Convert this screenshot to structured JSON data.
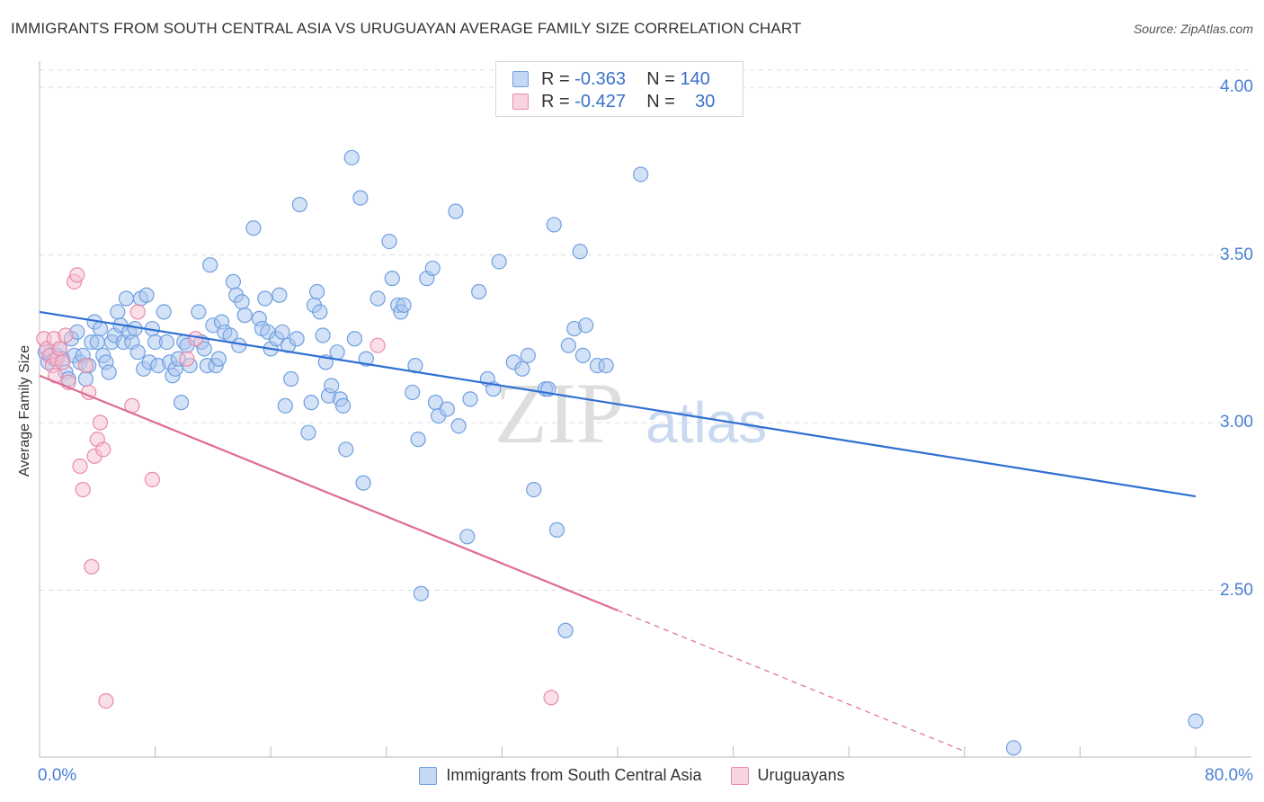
{
  "header": {
    "title": "IMMIGRANTS FROM SOUTH CENTRAL ASIA VS URUGUAYAN AVERAGE FAMILY SIZE CORRELATION CHART",
    "source": "Source: ZipAtlas.com"
  },
  "watermark": {
    "zip": "ZIP",
    "atlas": "atlas"
  },
  "legend": {
    "rows": [
      {
        "r_label": "R =",
        "r_value": "-0.363",
        "n_label": "N =",
        "n_value": "140",
        "color": "#6f9fe0"
      },
      {
        "r_label": "R =",
        "r_value": "-0.427",
        "n_label": "N =",
        "n_value": "30",
        "color": "#e98aaa"
      }
    ]
  },
  "chart_data": {
    "type": "scatter",
    "title": "IMMIGRANTS FROM SOUTH CENTRAL ASIA VS URUGUAYAN AVERAGE FAMILY SIZE CORRELATION CHART",
    "xlabel": "",
    "ylabel": "Average Family Size",
    "xlim": [
      0,
      80
    ],
    "ylim": [
      2.0,
      4.1
    ],
    "x_tick_labels": [
      "0.0%",
      "80.0%"
    ],
    "y_ticks": [
      2.5,
      3.0,
      3.5,
      4.0
    ],
    "y_tick_labels": [
      "2.50",
      "3.00",
      "3.50",
      "4.00"
    ],
    "grid": "horizontal dashed",
    "legend_position": "top-center",
    "series": [
      {
        "name": "Immigrants from South Central Asia",
        "color": "#6f9fe0",
        "fill": "#a9c6ef",
        "trend": {
          "x": [
            0,
            80
          ],
          "y": [
            3.33,
            2.78
          ]
        },
        "points": [
          [
            0.4,
            3.21
          ],
          [
            0.6,
            3.18
          ],
          [
            0.8,
            3.2
          ],
          [
            1.0,
            3.19
          ],
          [
            1.2,
            3.2
          ],
          [
            1.4,
            3.22
          ],
          [
            1.6,
            3.19
          ],
          [
            1.8,
            3.15
          ],
          [
            2.0,
            3.13
          ],
          [
            2.2,
            3.25
          ],
          [
            2.4,
            3.2
          ],
          [
            2.6,
            3.27
          ],
          [
            2.8,
            3.18
          ],
          [
            3.0,
            3.2
          ],
          [
            3.2,
            3.13
          ],
          [
            3.4,
            3.17
          ],
          [
            3.6,
            3.24
          ],
          [
            3.8,
            3.3
          ],
          [
            4.0,
            3.24
          ],
          [
            4.2,
            3.28
          ],
          [
            4.4,
            3.2
          ],
          [
            4.6,
            3.18
          ],
          [
            4.8,
            3.15
          ],
          [
            5.0,
            3.24
          ],
          [
            5.2,
            3.26
          ],
          [
            5.4,
            3.33
          ],
          [
            5.6,
            3.29
          ],
          [
            5.8,
            3.24
          ],
          [
            6.0,
            3.37
          ],
          [
            6.2,
            3.27
          ],
          [
            6.4,
            3.24
          ],
          [
            6.6,
            3.28
          ],
          [
            6.8,
            3.21
          ],
          [
            7.0,
            3.37
          ],
          [
            7.2,
            3.16
          ],
          [
            7.4,
            3.38
          ],
          [
            7.6,
            3.18
          ],
          [
            7.8,
            3.28
          ],
          [
            8.0,
            3.24
          ],
          [
            8.2,
            3.17
          ],
          [
            8.6,
            3.33
          ],
          [
            8.8,
            3.24
          ],
          [
            9.0,
            3.18
          ],
          [
            9.2,
            3.14
          ],
          [
            9.4,
            3.16
          ],
          [
            9.6,
            3.19
          ],
          [
            9.8,
            3.06
          ],
          [
            10.0,
            3.24
          ],
          [
            10.2,
            3.23
          ],
          [
            10.4,
            3.17
          ],
          [
            11.0,
            3.33
          ],
          [
            11.2,
            3.24
          ],
          [
            11.4,
            3.22
          ],
          [
            11.6,
            3.17
          ],
          [
            11.8,
            3.47
          ],
          [
            12.0,
            3.29
          ],
          [
            12.2,
            3.17
          ],
          [
            12.4,
            3.19
          ],
          [
            12.6,
            3.3
          ],
          [
            12.8,
            3.27
          ],
          [
            13.2,
            3.26
          ],
          [
            13.4,
            3.42
          ],
          [
            13.6,
            3.38
          ],
          [
            13.8,
            3.23
          ],
          [
            14.0,
            3.36
          ],
          [
            14.2,
            3.32
          ],
          [
            14.8,
            3.58
          ],
          [
            15.2,
            3.31
          ],
          [
            15.4,
            3.28
          ],
          [
            15.6,
            3.37
          ],
          [
            15.8,
            3.27
          ],
          [
            16.0,
            3.22
          ],
          [
            16.4,
            3.25
          ],
          [
            16.6,
            3.38
          ],
          [
            16.8,
            3.27
          ],
          [
            17.0,
            3.05
          ],
          [
            17.2,
            3.23
          ],
          [
            17.4,
            3.13
          ],
          [
            17.8,
            3.25
          ],
          [
            18.0,
            3.65
          ],
          [
            18.6,
            2.97
          ],
          [
            18.8,
            3.06
          ],
          [
            19.0,
            3.35
          ],
          [
            19.2,
            3.39
          ],
          [
            19.4,
            3.33
          ],
          [
            19.6,
            3.26
          ],
          [
            19.8,
            3.18
          ],
          [
            20.0,
            3.08
          ],
          [
            20.2,
            3.11
          ],
          [
            20.6,
            3.21
          ],
          [
            20.8,
            3.07
          ],
          [
            21.0,
            3.05
          ],
          [
            21.2,
            2.92
          ],
          [
            21.6,
            3.79
          ],
          [
            21.8,
            3.25
          ],
          [
            22.2,
            3.67
          ],
          [
            22.4,
            2.82
          ],
          [
            22.6,
            3.19
          ],
          [
            23.4,
            3.37
          ],
          [
            24.2,
            3.54
          ],
          [
            24.4,
            3.43
          ],
          [
            24.8,
            3.35
          ],
          [
            25.0,
            3.33
          ],
          [
            25.2,
            3.35
          ],
          [
            25.8,
            3.09
          ],
          [
            26.0,
            3.17
          ],
          [
            26.2,
            2.95
          ],
          [
            26.4,
            2.49
          ],
          [
            26.8,
            3.43
          ],
          [
            27.2,
            3.46
          ],
          [
            27.4,
            3.06
          ],
          [
            27.6,
            3.02
          ],
          [
            28.8,
            3.63
          ],
          [
            28.2,
            3.04
          ],
          [
            29.0,
            2.99
          ],
          [
            29.6,
            2.66
          ],
          [
            29.8,
            3.07
          ],
          [
            30.4,
            3.39
          ],
          [
            31.0,
            3.13
          ],
          [
            31.8,
            3.48
          ],
          [
            31.4,
            3.1
          ],
          [
            32.8,
            3.18
          ],
          [
            33.4,
            3.16
          ],
          [
            33.8,
            3.2
          ],
          [
            34.2,
            2.8
          ],
          [
            35.0,
            3.1
          ],
          [
            35.2,
            3.1
          ],
          [
            35.8,
            2.68
          ],
          [
            35.6,
            3.59
          ],
          [
            36.4,
            2.38
          ],
          [
            36.6,
            3.23
          ],
          [
            37.0,
            3.28
          ],
          [
            37.4,
            3.51
          ],
          [
            37.6,
            3.2
          ],
          [
            37.8,
            3.29
          ],
          [
            38.6,
            3.17
          ],
          [
            39.2,
            3.17
          ],
          [
            41.6,
            3.74
          ],
          [
            67.4,
            2.03
          ],
          [
            80.0,
            2.11
          ]
        ]
      },
      {
        "name": "Uruguayans",
        "color": "#e98aaa",
        "fill": "#f5bfd1",
        "trend": {
          "x": [
            0,
            40
          ],
          "y": [
            3.14,
            2.44
          ]
        },
        "trend_dashed": {
          "x": [
            40,
            64
          ],
          "y": [
            2.44,
            2.02
          ]
        },
        "points": [
          [
            0.3,
            3.25
          ],
          [
            0.5,
            3.22
          ],
          [
            0.7,
            3.2
          ],
          [
            0.9,
            3.17
          ],
          [
            1.0,
            3.25
          ],
          [
            1.1,
            3.14
          ],
          [
            1.2,
            3.19
          ],
          [
            1.4,
            3.22
          ],
          [
            1.6,
            3.18
          ],
          [
            1.8,
            3.26
          ],
          [
            2.0,
            3.12
          ],
          [
            2.4,
            3.42
          ],
          [
            2.6,
            3.44
          ],
          [
            2.8,
            2.87
          ],
          [
            3.0,
            2.8
          ],
          [
            3.2,
            3.17
          ],
          [
            3.4,
            3.09
          ],
          [
            3.6,
            2.57
          ],
          [
            3.8,
            2.9
          ],
          [
            4.0,
            2.95
          ],
          [
            4.2,
            3.0
          ],
          [
            4.4,
            2.92
          ],
          [
            4.6,
            2.17
          ],
          [
            6.4,
            3.05
          ],
          [
            6.8,
            3.33
          ],
          [
            7.8,
            2.83
          ],
          [
            10.2,
            3.19
          ],
          [
            23.4,
            3.23
          ],
          [
            35.4,
            2.18
          ],
          [
            10.8,
            3.25
          ]
        ]
      }
    ]
  },
  "bottom_legend": {
    "items": [
      {
        "label": "Immigrants from South Central Asia",
        "color": "#6f9fe0",
        "fill": "#a9c6ef"
      },
      {
        "label": "Uruguayans",
        "color": "#e98aaa",
        "fill": "#f5bfd1"
      }
    ]
  }
}
